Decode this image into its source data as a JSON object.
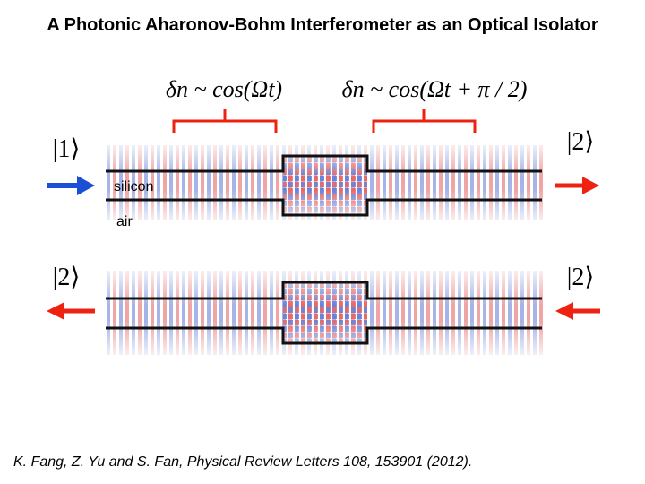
{
  "title": "A Photonic Aharonov-Bohm Interferometer as an Optical Isolator",
  "equations": [
    "δn ~ cos(Ωt)",
    "δn ~ cos(Ωt + π / 2)"
  ],
  "labels": {
    "input_top": "|1⟩",
    "output_top": "|2⟩",
    "input_bottom": "|2⟩",
    "output_bottom": "|2⟩",
    "silicon": "silicon",
    "air": "air"
  },
  "citation": "K. Fang, Z. Yu and S. Fan, Physical Review Letters 108, 153901 (2012)."
}
